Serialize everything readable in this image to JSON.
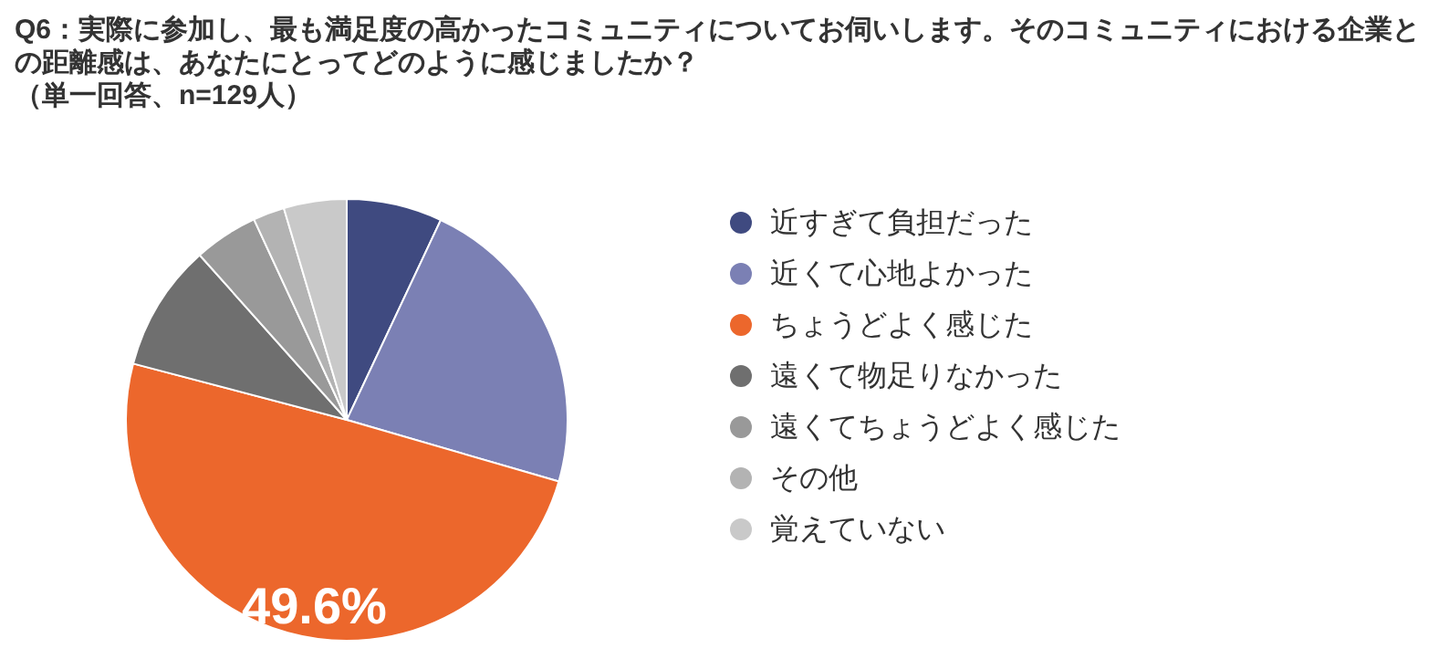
{
  "chart_data": {
    "type": "pie",
    "title": "Q6：実際に参加し、最も満足度の高かったコミュニティについてお伺いします。そのコミュニティにおける企業との距離感は、あなたにとってどのように感じましたか？",
    "subtitle": "（単一回答、n=129人）",
    "categories": [
      "近すぎて負担だった",
      "近くて心地よかった",
      "ちょうどよく感じた",
      "遠くて物足りなかった",
      "遠くてちょうどよく感じた",
      "その他",
      "覚えていない"
    ],
    "values": [
      7.0,
      22.5,
      49.6,
      9.3,
      4.7,
      2.3,
      4.6
    ],
    "colors": [
      "#3f4a80",
      "#7b80b4",
      "#ec672c",
      "#6f6f6f",
      "#999999",
      "#b3b3b3",
      "#c9c9c9"
    ],
    "value_labels": [
      null,
      null,
      "49.6%",
      null,
      null,
      null,
      null
    ],
    "legend": "right"
  }
}
